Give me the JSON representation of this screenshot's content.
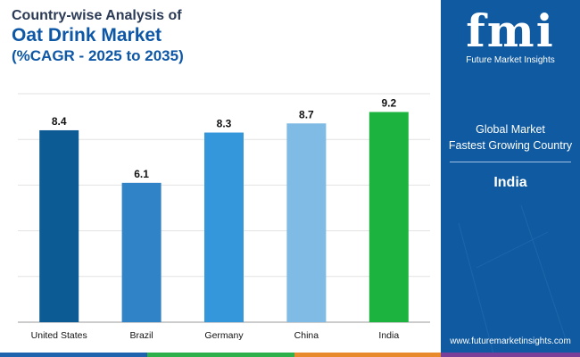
{
  "header": {
    "title_line1": "Country-wise Analysis of",
    "title_line2": "Oat Drink Market",
    "title_line3": "(%CAGR - 2025 to 2035)"
  },
  "chart_data": {
    "type": "bar",
    "categories": [
      "United States",
      "Brazil",
      "Germany",
      "China",
      "India"
    ],
    "values": [
      8.4,
      6.1,
      8.3,
      8.7,
      9.2
    ],
    "data_labels": [
      "8.4",
      "6.1",
      "8.3",
      "8.7",
      "9.2"
    ],
    "bar_colors": [
      "#0d5b95",
      "#2f83c6",
      "#3497db",
      "#7fbbe5",
      "#1db33f"
    ],
    "ylim": [
      0,
      10
    ],
    "grid": true
  },
  "sidebar": {
    "logo_text": "fmi",
    "brand_name": "Future Market Insights",
    "label_line1": "Global Market",
    "label_line2": "Fastest Growing Country",
    "highlight_value": "India",
    "website": "www.futuremarketinsights.com"
  },
  "colors": {
    "panel_bg": "#0f5aa0",
    "title_dark": "#2b3a55",
    "title_blue": "#0d57a6",
    "bottom_bar": [
      "#1e63ad",
      "#2db04a",
      "#e8892b",
      "#7a3f98"
    ]
  }
}
